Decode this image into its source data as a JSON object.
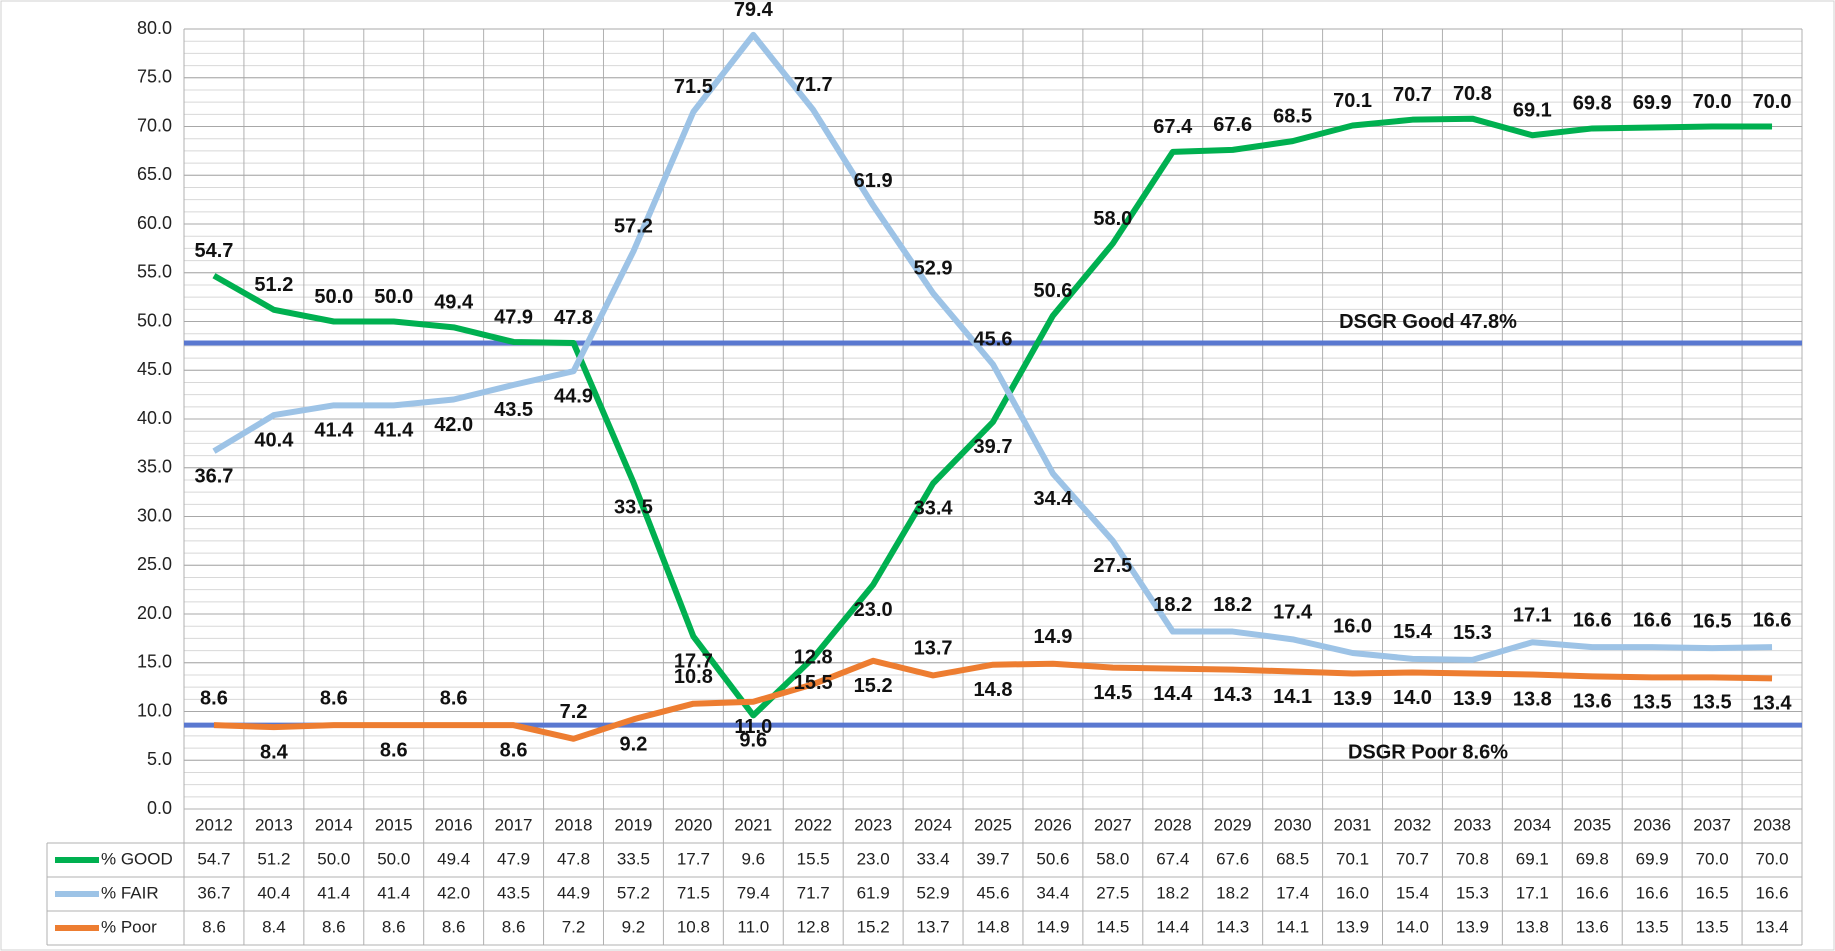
{
  "chart_data": {
    "type": "line",
    "categories": [
      "2012",
      "2013",
      "2014",
      "2015",
      "2016",
      "2017",
      "2018",
      "2019",
      "2020",
      "2021",
      "2022",
      "2023",
      "2024",
      "2025",
      "2026",
      "2027",
      "2028",
      "2029",
      "2030",
      "2031",
      "2032",
      "2033",
      "2034",
      "2035",
      "2036",
      "2037",
      "2038"
    ],
    "series": [
      {
        "name": "% GOOD",
        "color": "#00b050",
        "values": [
          54.7,
          51.2,
          50.0,
          50.0,
          49.4,
          47.9,
          47.8,
          33.5,
          17.7,
          9.6,
          15.5,
          23.0,
          33.4,
          39.7,
          50.6,
          58.0,
          67.4,
          67.6,
          68.5,
          70.1,
          70.7,
          70.8,
          69.1,
          69.8,
          69.9,
          70.0,
          70.0
        ],
        "value_labels": [
          "54.7",
          "51.2",
          "50.0",
          "50.0",
          "49.4",
          "47.9",
          "47.8",
          "33.5",
          "17.7",
          "9.6",
          "15.5",
          "23.0",
          "33.4",
          "39.7",
          "50.6",
          "58.0",
          "67.4",
          "67.6",
          "68.5",
          "70.1",
          "70.7",
          "70.8",
          "69.1",
          "69.8",
          "69.9",
          "70.0",
          "70.0"
        ]
      },
      {
        "name": "% FAIR",
        "color": "#9dc3e6",
        "values": [
          36.7,
          40.4,
          41.4,
          41.4,
          42.0,
          43.5,
          44.9,
          57.2,
          71.5,
          79.4,
          71.7,
          61.9,
          52.9,
          45.6,
          34.4,
          27.5,
          18.2,
          18.2,
          17.4,
          16.0,
          15.4,
          15.3,
          17.1,
          16.6,
          16.6,
          16.5,
          16.6
        ],
        "value_labels": [
          "36.7",
          "40.4",
          "41.4",
          "41.4",
          "42.0",
          "43.5",
          "44.9",
          "57.2",
          "71.5",
          "79.4",
          "71.7",
          "61.9",
          "52.9",
          "45.6",
          "34.4",
          "27.5",
          "18.2",
          "18.2",
          "17.4",
          "16.0",
          "15.4",
          "15.3",
          "17.1",
          "16.6",
          "16.6",
          "16.5",
          "16.6"
        ]
      },
      {
        "name": "% Poor",
        "color": "#ed7d31",
        "values": [
          8.6,
          8.4,
          8.6,
          8.6,
          8.6,
          8.6,
          7.2,
          9.2,
          10.8,
          11.0,
          12.8,
          15.2,
          13.7,
          14.8,
          14.9,
          14.5,
          14.4,
          14.3,
          14.1,
          13.9,
          14.0,
          13.9,
          13.8,
          13.6,
          13.5,
          13.5,
          13.4
        ],
        "value_labels": [
          "8.6",
          "8.4",
          "8.6",
          "8.6",
          "8.6",
          "8.6",
          "7.2",
          "9.2",
          "10.8",
          "11.0",
          "12.8",
          "15.2",
          "13.7",
          "14.8",
          "14.9",
          "14.5",
          "14.4",
          "14.3",
          "14.1",
          "13.9",
          "14.0",
          "13.9",
          "13.8",
          "13.6",
          "13.5",
          "13.5",
          "13.4"
        ]
      }
    ],
    "ylim": [
      0,
      80
    ],
    "yticks": [
      {
        "value": 0,
        "label": "0.0"
      },
      {
        "value": 5,
        "label": "5.0"
      },
      {
        "value": 10,
        "label": "10.0"
      },
      {
        "value": 15,
        "label": "15.0"
      },
      {
        "value": 20,
        "label": "20.0"
      },
      {
        "value": 25,
        "label": "25.0"
      },
      {
        "value": 30,
        "label": "30.0"
      },
      {
        "value": 35,
        "label": "35.0"
      },
      {
        "value": 40,
        "label": "40.0"
      },
      {
        "value": 45,
        "label": "45.0"
      },
      {
        "value": 50,
        "label": "50.0"
      },
      {
        "value": 55,
        "label": "55.0"
      },
      {
        "value": 60,
        "label": "60.0"
      },
      {
        "value": 65,
        "label": "65.0"
      },
      {
        "value": 70,
        "label": "70.0"
      },
      {
        "value": 75,
        "label": "75.0"
      },
      {
        "value": 80,
        "label": "80.0"
      }
    ],
    "grid": true,
    "reference_lines": [
      {
        "label": "DSGR Good 47.8%",
        "value": 47.8,
        "color": "#5a78d0"
      },
      {
        "label": "DSGR Poor 8.6%",
        "value": 8.6,
        "color": "#5a78d0"
      }
    ]
  }
}
